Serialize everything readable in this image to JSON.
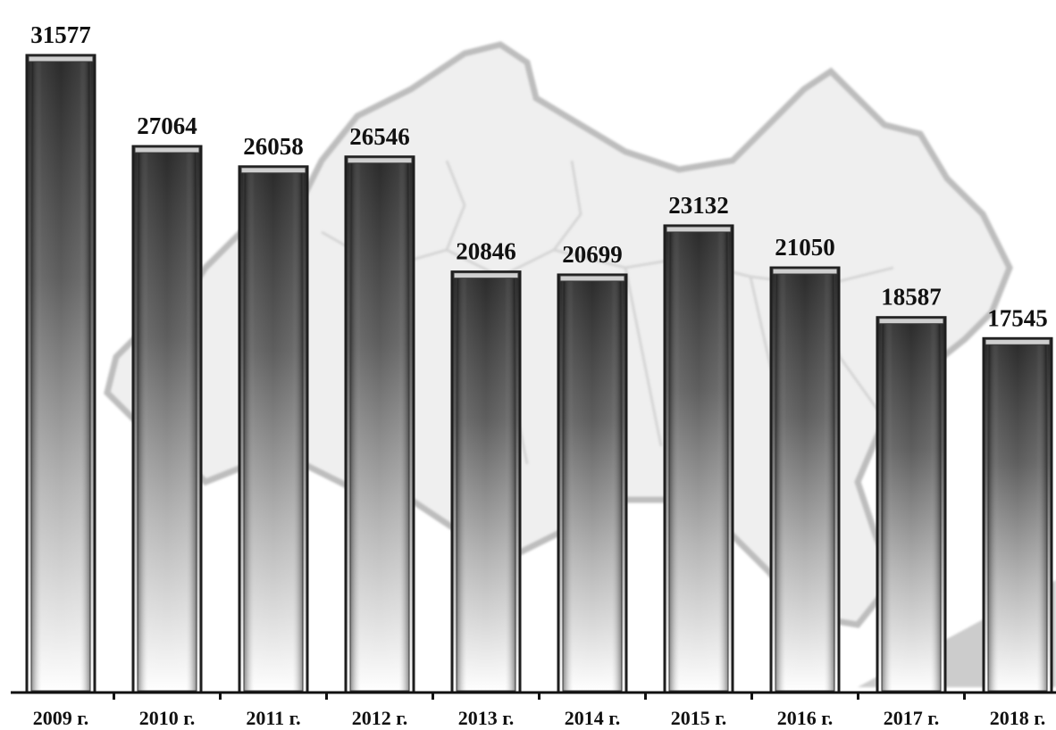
{
  "chart_data": {
    "type": "bar",
    "categories": [
      "2009 г.",
      "2010 г.",
      "2011 г.",
      "2012 г.",
      "2013 г.",
      "2014 г.",
      "2015 г.",
      "2016 г.",
      "2017 г.",
      "2018 г."
    ],
    "values": [
      31577,
      27064,
      26058,
      26546,
      20846,
      20699,
      23132,
      21050,
      18587,
      17545
    ],
    "data_labels": [
      "31577",
      "27064",
      "26058",
      "26546",
      "20846",
      "20699",
      "23132",
      "21050",
      "18587",
      "17545"
    ],
    "title": "",
    "xlabel": "",
    "ylabel": "",
    "ylim": [
      0,
      31577
    ],
    "grid": false,
    "legend": "none",
    "background": "faded map image",
    "colors": {
      "bar_top": "#2a2a2a",
      "bar_mid": "#8a8a8a",
      "bar_bottom": "#ffffff",
      "bar_border": "#1e1e1e",
      "axis": "#111111",
      "text": "#111111",
      "map_fill": "#efefef",
      "map_border": "#bdbdbd"
    }
  }
}
